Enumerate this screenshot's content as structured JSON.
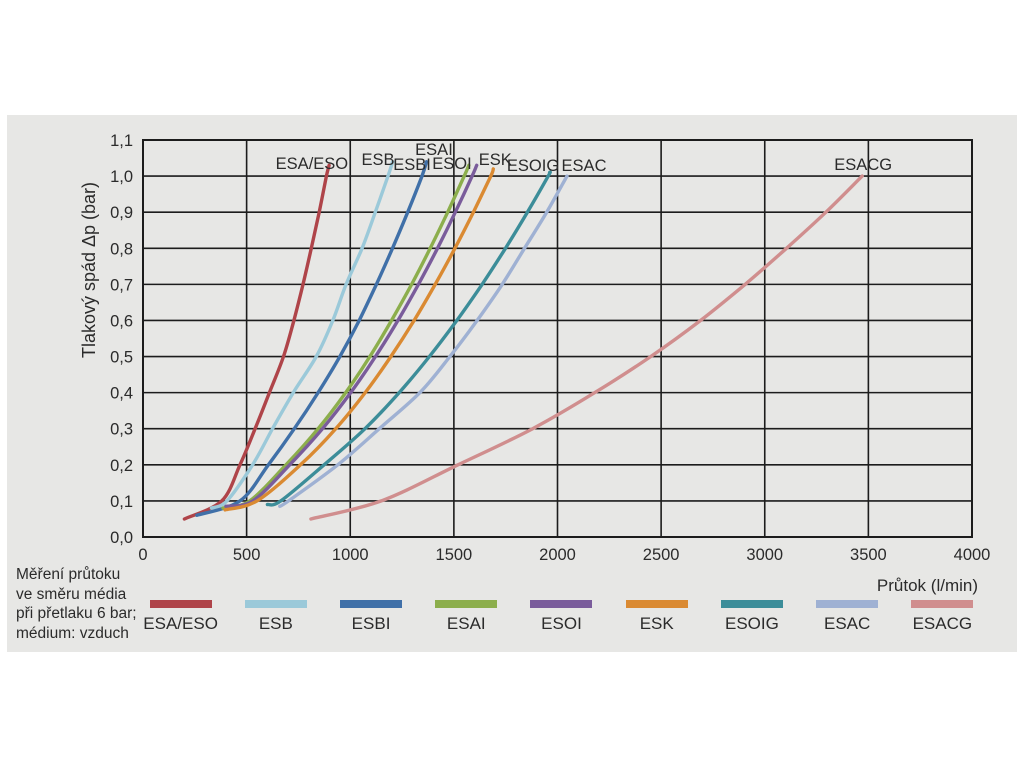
{
  "page": {
    "background": "#ffffff",
    "panel_background": "#e7e7e5",
    "grid_color": "#1c1c1c",
    "text_color": "#2b2b2b"
  },
  "annotation": {
    "lines": [
      "Měření průtoku",
      "ve směru média",
      "při přetlaku 6 bar;",
      "médium: vzduch"
    ]
  },
  "chart_data": {
    "type": "line",
    "title": "",
    "xlabel": "Průtok (l/min)",
    "ylabel": "Tlakový spád Δp (bar)",
    "xlim": [
      0,
      4000
    ],
    "ylim": [
      0,
      1.1
    ],
    "grid": true,
    "legend_position": "bottom",
    "x_ticks": [
      0,
      500,
      1000,
      1500,
      2000,
      2500,
      3000,
      3500,
      4000
    ],
    "x_tick_labels": [
      "0",
      "500",
      "1000",
      "1500",
      "2000",
      "2500",
      "3000",
      "3500",
      "4000"
    ],
    "y_ticks": [
      0,
      0.1,
      0.2,
      0.3,
      0.4,
      0.5,
      0.6,
      0.7,
      0.8,
      0.9,
      1.0,
      1.1
    ],
    "y_tick_labels": [
      "0,0",
      "0,1",
      "0,2",
      "0,3",
      "0,4",
      "0,5",
      "0,6",
      "0,7",
      "0,8",
      "0,9",
      "1,0",
      "1,1"
    ],
    "series": [
      {
        "name": "ESA/ESO",
        "color": "#af4449",
        "label_anchor": {
          "q": 815,
          "dp": 1.036
        },
        "points": [
          [
            200,
            0.05
          ],
          [
            380,
            0.1
          ],
          [
            468,
            0.2
          ],
          [
            541,
            0.3
          ],
          [
            610,
            0.4
          ],
          [
            678,
            0.5
          ],
          [
            728,
            0.6
          ],
          [
            772,
            0.7
          ],
          [
            812,
            0.8
          ],
          [
            850,
            0.9
          ],
          [
            885,
            1.0
          ],
          [
            898,
            1.03
          ]
        ]
      },
      {
        "name": "ESB",
        "color": "#9bc9d9",
        "label_anchor": {
          "q": 1134,
          "dp": 1.048
        },
        "points": [
          [
            330,
            0.08
          ],
          [
            405,
            0.1
          ],
          [
            529,
            0.2
          ],
          [
            625,
            0.3
          ],
          [
            725,
            0.4
          ],
          [
            836,
            0.5
          ],
          [
            916,
            0.6
          ],
          [
            980,
            0.7
          ],
          [
            1057,
            0.8
          ],
          [
            1121,
            0.9
          ],
          [
            1182,
            1.0
          ],
          [
            1205,
            1.04
          ]
        ]
      },
      {
        "name": "ESBI",
        "color": "#4070a8",
        "label_anchor": {
          "q": 1298,
          "dp": 1.033
        },
        "points": [
          [
            260,
            0.06
          ],
          [
            468,
            0.1
          ],
          [
            605,
            0.2
          ],
          [
            730,
            0.3
          ],
          [
            845,
            0.4
          ],
          [
            950,
            0.5
          ],
          [
            1043,
            0.6
          ],
          [
            1126,
            0.7
          ],
          [
            1204,
            0.8
          ],
          [
            1277,
            0.9
          ],
          [
            1346,
            1.0
          ],
          [
            1368,
            1.04
          ]
        ]
      },
      {
        "name": "ESAI",
        "color": "#8cae4c",
        "label_anchor": {
          "q": 1404,
          "dp": 1.075
        },
        "points": [
          [
            386,
            0.08
          ],
          [
            515,
            0.1
          ],
          [
            690,
            0.2
          ],
          [
            845,
            0.3
          ],
          [
            978,
            0.4
          ],
          [
            1095,
            0.5
          ],
          [
            1199,
            0.6
          ],
          [
            1296,
            0.7
          ],
          [
            1386,
            0.8
          ],
          [
            1470,
            0.9
          ],
          [
            1550,
            1.0
          ],
          [
            1572,
            1.03
          ]
        ]
      },
      {
        "name": "ESOI",
        "color": "#7a5c9b",
        "label_anchor": {
          "q": 1491,
          "dp": 1.036
        },
        "points": [
          [
            400,
            0.085
          ],
          [
            530,
            0.1
          ],
          [
            708,
            0.2
          ],
          [
            866,
            0.3
          ],
          [
            1002,
            0.4
          ],
          [
            1122,
            0.5
          ],
          [
            1230,
            0.6
          ],
          [
            1329,
            0.7
          ],
          [
            1421,
            0.8
          ],
          [
            1507,
            0.9
          ],
          [
            1588,
            1.0
          ],
          [
            1610,
            1.03
          ]
        ]
      },
      {
        "name": "ESK",
        "color": "#da8a32",
        "label_anchor": {
          "q": 1700,
          "dp": 1.048
        },
        "points": [
          [
            396,
            0.075
          ],
          [
            550,
            0.1
          ],
          [
            760,
            0.2
          ],
          [
            930,
            0.3
          ],
          [
            1072,
            0.4
          ],
          [
            1196,
            0.5
          ],
          [
            1308,
            0.6
          ],
          [
            1410,
            0.7
          ],
          [
            1505,
            0.8
          ],
          [
            1594,
            0.9
          ],
          [
            1678,
            1.0
          ],
          [
            1690,
            1.02
          ]
        ]
      },
      {
        "name": "ESOIG",
        "color": "#3c8d99",
        "label_anchor": {
          "q": 1882,
          "dp": 1.031
        },
        "points": [
          [
            600,
            0.09
          ],
          [
            665,
            0.1
          ],
          [
            874,
            0.2
          ],
          [
            1071,
            0.3
          ],
          [
            1236,
            0.4
          ],
          [
            1382,
            0.5
          ],
          [
            1514,
            0.6
          ],
          [
            1636,
            0.7
          ],
          [
            1749,
            0.8
          ],
          [
            1855,
            0.9
          ],
          [
            1955,
            1.0
          ],
          [
            1962,
            1.01
          ]
        ]
      },
      {
        "name": "ESAC",
        "color": "#9fb1d3",
        "label_anchor": {
          "q": 2128,
          "dp": 1.031
        },
        "points": [
          [
            660,
            0.085
          ],
          [
            702,
            0.1
          ],
          [
            940,
            0.2
          ],
          [
            1140,
            0.3
          ],
          [
            1336,
            0.4
          ],
          [
            1481,
            0.5
          ],
          [
            1612,
            0.6
          ],
          [
            1733,
            0.7
          ],
          [
            1841,
            0.8
          ],
          [
            1948,
            0.9
          ],
          [
            2046,
            1.0
          ]
        ]
      },
      {
        "name": "ESACG",
        "color": "#d08e8e",
        "label_anchor": {
          "q": 3475,
          "dp": 1.034
        },
        "points": [
          [
            810,
            0.05
          ],
          [
            1150,
            0.1
          ],
          [
            1520,
            0.2
          ],
          [
            1880,
            0.3
          ],
          [
            2180,
            0.4
          ],
          [
            2450,
            0.5
          ],
          [
            2690,
            0.6
          ],
          [
            2905,
            0.7
          ],
          [
            3105,
            0.8
          ],
          [
            3295,
            0.9
          ],
          [
            3470,
            1.0
          ]
        ]
      }
    ]
  }
}
